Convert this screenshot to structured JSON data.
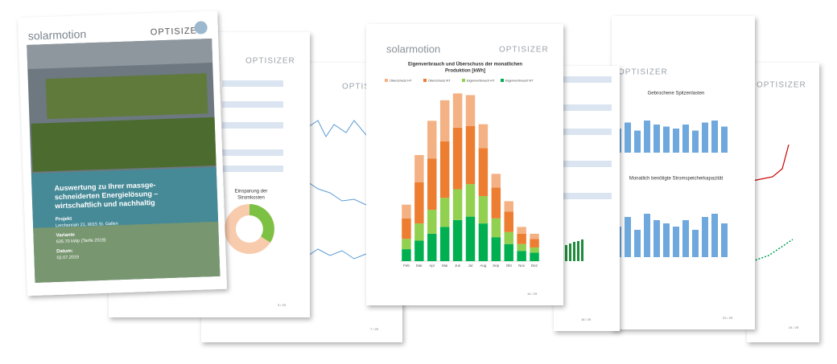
{
  "cover": {
    "brand": "solarmotion",
    "product": "OPTISIZER",
    "title_lines": [
      "Auswertung zu Ihrer massge-",
      "schneiderten Energielösung –",
      "wirtschaftlich und nachhaltig"
    ],
    "fields": [
      {
        "label": "Projekt",
        "value": "Lerchenrain 21, 9015 St. Gallen"
      },
      {
        "label": "Variante",
        "value": "635.70 kWp (Tarife 2019)"
      },
      {
        "label": "Datum:",
        "value": "02.07.2019"
      }
    ]
  },
  "pages": [
    {
      "product": "OPTISIZER",
      "chart_title_lines": [
        "Einsparung der",
        "Stromkosten"
      ],
      "page": "3 / 29"
    },
    {
      "product": "OPTISIZER",
      "page": "7 / 29"
    },
    {
      "brand": "solarmotion",
      "product": "OPTISIZER",
      "page": "14 / 29",
      "chart": {
        "type": "bar",
        "stacked": true,
        "title_lines": [
          "Eigenverbrauch und Überschuss der monatlichen",
          "Produktion [kWh]"
        ],
        "categories": [
          "Feb",
          "Mar",
          "Apr",
          "Mai",
          "Jun",
          "Jul",
          "Aug",
          "Sep",
          "Okt",
          "Nov",
          "Dez"
        ],
        "ylim": [
          0,
          100000
        ],
        "series": [
          {
            "name": "Eigenverbrauch NT",
            "color": "#00b050",
            "values": [
              7000,
              12000,
              16000,
              20000,
              24000,
              26000,
              22000,
              14000,
              10000,
              6000,
              5000
            ]
          },
          {
            "name": "Eigenverbrauch HT",
            "color": "#92d050",
            "values": [
              6000,
              10000,
              14000,
              17000,
              18000,
              19000,
              16000,
              11000,
              7000,
              4000,
              3000
            ]
          },
          {
            "name": "Überschuss NT",
            "color": "#ed7d31",
            "values": [
              12000,
              24000,
              30000,
              33000,
              36000,
              34000,
              28000,
              18000,
              12000,
              6000,
              5000
            ]
          },
          {
            "name": "Überschuss HT",
            "color": "#f4b183",
            "values": [
              8000,
              16000,
              22000,
              24000,
              20000,
              18000,
              14000,
              8000,
              6000,
              4000,
              3000
            ]
          }
        ]
      }
    },
    {
      "page": "16 / 29"
    },
    {
      "product": "OPTISIZER",
      "chart_titles": [
        "Gebrochene Spitzenlasten",
        "Monatlich benötigte Stromspeicherkapazität"
      ],
      "page": "22 / 29"
    },
    {
      "product": "OPTISIZER",
      "page": "24 / 29"
    }
  ]
}
